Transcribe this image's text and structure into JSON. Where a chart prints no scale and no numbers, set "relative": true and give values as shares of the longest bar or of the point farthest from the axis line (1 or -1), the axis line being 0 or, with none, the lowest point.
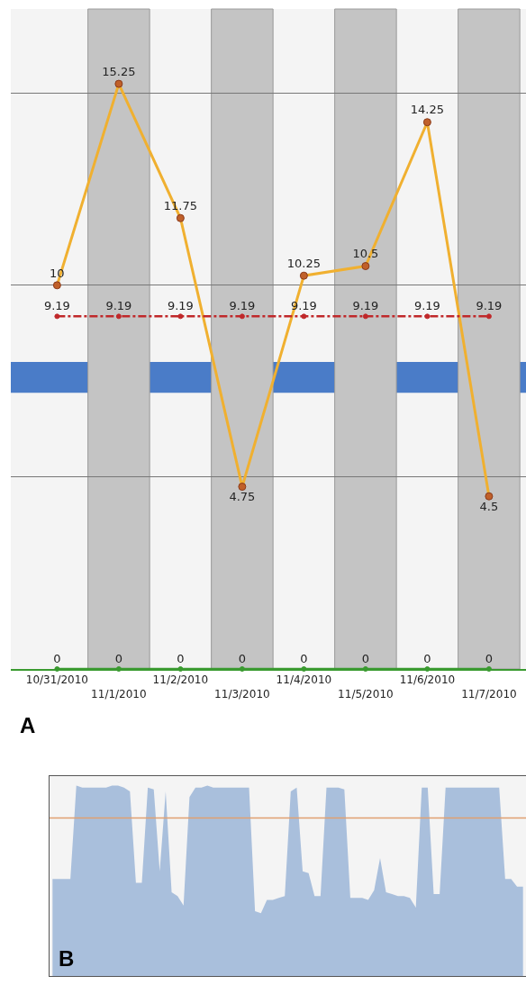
{
  "chart_data": [
    {
      "type": "line",
      "categories": [
        "10/31/2010",
        "11/1/2010",
        "11/2/2010",
        "11/3/2010",
        "11/4/2010",
        "11/5/2010",
        "11/6/2010",
        "11/7/2010"
      ],
      "series": [
        {
          "color": "#f0b030",
          "values": [
            10,
            15.25,
            11.75,
            4.75,
            10.25,
            10.5,
            14.25,
            4.5
          ],
          "marker": "circle",
          "line_style": "solid"
        },
        {
          "color": "#c0282a",
          "values": [
            9.19,
            9.19,
            9.19,
            9.19,
            9.19,
            9.19,
            9.19,
            9.19
          ],
          "marker": "circle",
          "line_style": "dashed"
        },
        {
          "color": "#3a9a30",
          "values": [
            0,
            0,
            0,
            0,
            0,
            0,
            0,
            0
          ],
          "marker": "circle",
          "line_style": "solid"
        }
      ],
      "ylim": [
        0,
        17.2
      ],
      "yticks": [
        {
          "value": 5,
          "label": null
        },
        {
          "value": 10,
          "label": null
        },
        {
          "value": 15,
          "label": null
        }
      ],
      "tick_labels": "x",
      "grid": "y",
      "data_labels": true,
      "bands": [
        {
          "axis": "y",
          "from": 7.2,
          "to": 8,
          "color": "#4a7cc8"
        },
        {
          "axis": "x",
          "from": "11/1/2010",
          "to": "11/1/2010",
          "color": "#c4c4c4"
        },
        {
          "axis": "x",
          "from": "11/3/2010",
          "to": "11/3/2010",
          "color": "#c4c4c4"
        },
        {
          "axis": "x",
          "from": "11/5/2010",
          "to": "11/5/2010",
          "color": "#c4c4c4"
        },
        {
          "axis": "x",
          "from": "11/7/2010",
          "to": "11/7/2010",
          "color": "#c4c4c4"
        }
      ],
      "annotations": [
        "A"
      ]
    },
    {
      "type": "area",
      "relative": true,
      "tick_labels": false,
      "categories": [
        null,
        null,
        null,
        null,
        null,
        null,
        null,
        null,
        null,
        null,
        null,
        null,
        null,
        null,
        null,
        null,
        null,
        null,
        null,
        null,
        null,
        null,
        null,
        null,
        null,
        null,
        null,
        null,
        null,
        null,
        null,
        null,
        null,
        null,
        null,
        null,
        null,
        null,
        null,
        null,
        null,
        null,
        null,
        null,
        null,
        null,
        null,
        null,
        null,
        null,
        null,
        null,
        null,
        null,
        null,
        null,
        null,
        null,
        null,
        null,
        null,
        null,
        null,
        null,
        null,
        null,
        null,
        null,
        null,
        null,
        null,
        null,
        null,
        null,
        null,
        null,
        null,
        null,
        null,
        null
      ],
      "series": [
        {
          "color": "#a9bfdc",
          "values": [
            0.51,
            0.51,
            0.51,
            0.51,
            1.0,
            0.99,
            0.99,
            0.99,
            0.99,
            0.99,
            1.0,
            1.0,
            0.99,
            0.97,
            0.49,
            0.49,
            0.99,
            0.98,
            0.55,
            0.97,
            0.44,
            0.42,
            0.37,
            0.94,
            0.99,
            0.99,
            1.0,
            0.99,
            0.99,
            0.99,
            0.99,
            0.99,
            0.99,
            0.99,
            0.34,
            0.33,
            0.4,
            0.4,
            0.41,
            0.42,
            0.97,
            0.99,
            0.55,
            0.54,
            0.42,
            0.42,
            0.99,
            0.99,
            0.99,
            0.98,
            0.41,
            0.41,
            0.41,
            0.4,
            0.45,
            0.62,
            0.44,
            0.43,
            0.42,
            0.42,
            0.41,
            0.36,
            0.99,
            0.99,
            0.43,
            0.43,
            0.99,
            0.99,
            0.99,
            0.99,
            0.99,
            0.99,
            0.99,
            0.99,
            0.99,
            0.99,
            0.51,
            0.51,
            0.47,
            0.47
          ]
        }
      ],
      "ref_lines": [
        {
          "axis": "y",
          "value": 0.83,
          "color": "#e0a070"
        }
      ],
      "annotations": [
        "B"
      ]
    }
  ]
}
